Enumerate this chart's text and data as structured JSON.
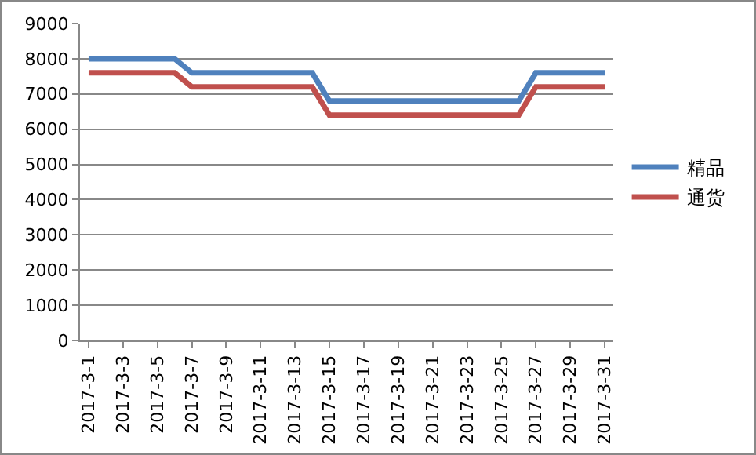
{
  "chart_data": {
    "type": "line",
    "categories": [
      "2017-3-1",
      null,
      "2017-3-3",
      null,
      "2017-3-5",
      null,
      "2017-3-7",
      null,
      "2017-3-9",
      null,
      "2017-3-11",
      null,
      "2017-3-13",
      null,
      "2017-3-15",
      null,
      "2017-3-17",
      null,
      "2017-3-19",
      null,
      "2017-3-21",
      null,
      "2017-3-23",
      null,
      "2017-3-25",
      null,
      "2017-3-27",
      null,
      "2017-3-29",
      null,
      "2017-3-31"
    ],
    "series": [
      {
        "name": "精品",
        "color": "#4f81bd",
        "values": [
          8000,
          8000,
          8000,
          8000,
          8000,
          8000,
          7600,
          7600,
          7600,
          7600,
          7600,
          7600,
          7600,
          7600,
          6800,
          6800,
          6800,
          6800,
          6800,
          6800,
          6800,
          6800,
          6800,
          6800,
          6800,
          6800,
          7600,
          7600,
          7600,
          7600,
          7600
        ]
      },
      {
        "name": "通货",
        "color": "#c0504d",
        "values": [
          7600,
          7600,
          7600,
          7600,
          7600,
          7600,
          7200,
          7200,
          7200,
          7200,
          7200,
          7200,
          7200,
          7200,
          6400,
          6400,
          6400,
          6400,
          6400,
          6400,
          6400,
          6400,
          6400,
          6400,
          6400,
          6400,
          7200,
          7200,
          7200,
          7200,
          7200
        ]
      }
    ],
    "ylim": [
      0,
      9000
    ],
    "yticks": [
      0,
      1000,
      2000,
      3000,
      4000,
      5000,
      6000,
      7000,
      8000,
      9000
    ],
    "grid": "y",
    "legend": "right",
    "marker": "none",
    "line_style": "solid"
  }
}
